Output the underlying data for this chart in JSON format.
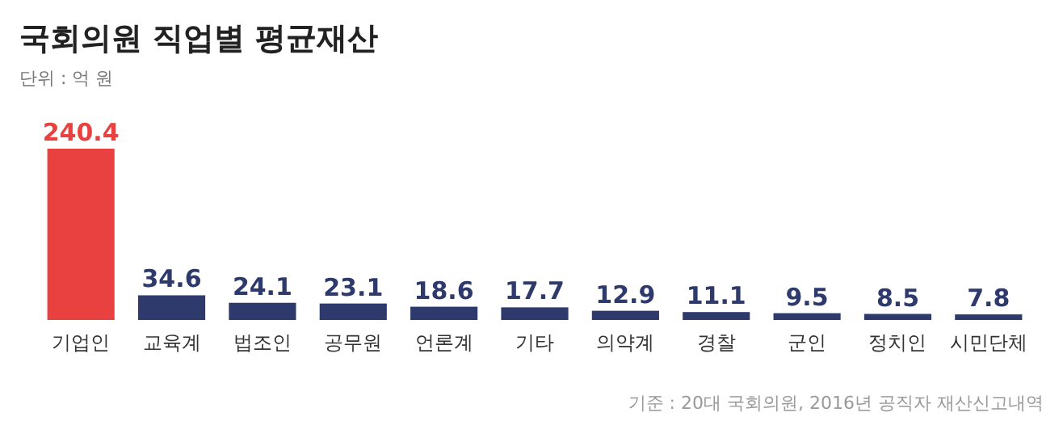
{
  "chart_data": {
    "type": "bar",
    "title": "국회의원 직업별 평균재산",
    "subtitle": "단위 : 억 원",
    "categories": [
      "기업인",
      "교육계",
      "법조인",
      "공무원",
      "언론계",
      "기타",
      "의약계",
      "경찰",
      "군인",
      "정치인",
      "시민단체"
    ],
    "values": [
      240.4,
      34.6,
      24.1,
      23.1,
      18.6,
      17.7,
      12.9,
      11.1,
      9.5,
      8.5,
      7.8
    ],
    "colors": [
      "#e8413f",
      "#2d3a6b",
      "#2d3a6b",
      "#2d3a6b",
      "#2d3a6b",
      "#2d3a6b",
      "#2d3a6b",
      "#2d3a6b",
      "#2d3a6b",
      "#2d3a6b",
      "#2d3a6b"
    ],
    "data_labels": true,
    "ylim": [
      0,
      240.4
    ],
    "tick_labels": "x",
    "annotations": [
      "기준 : 20대 국회의원, 2016년 공직자 재산신고내역"
    ]
  }
}
